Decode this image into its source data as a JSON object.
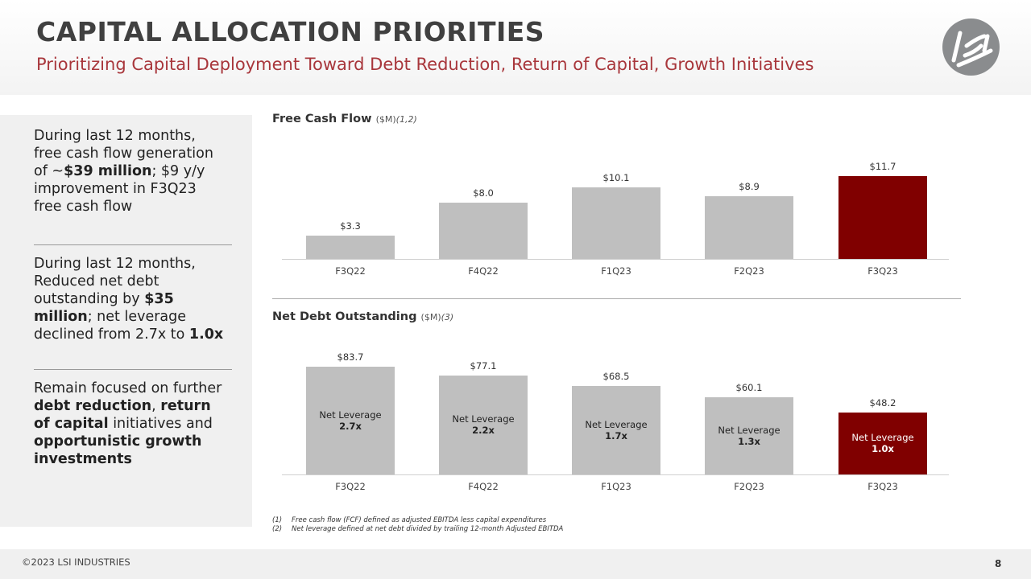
{
  "header": {
    "title": "CAPITAL ALLOCATION PRIORITIES",
    "subtitle": "Prioritizing Capital Deployment Toward Debt Reduction, Return of Capital, Growth Initiatives",
    "logo_text": "LSI"
  },
  "sidebar": {
    "blocks": [
      [
        {
          "t": "During last 12 months, free cash flow generation of ~",
          "b": false
        },
        {
          "t": "$39 million",
          "b": true
        },
        {
          "t": "; $9 y/y improvement in F3Q23 free cash flow",
          "b": false
        }
      ],
      [
        {
          "t": "During last 12 months, Reduced net debt outstanding by ",
          "b": false
        },
        {
          "t": "$35 million",
          "b": true
        },
        {
          "t": "; net leverage declined from 2.7x to ",
          "b": false
        },
        {
          "t": "1.0x",
          "b": true
        }
      ],
      [
        {
          "t": "Remain focused on further ",
          "b": false
        },
        {
          "t": "debt reduction",
          "b": true
        },
        {
          "t": ", ",
          "b": false
        },
        {
          "t": "return of capital",
          "b": true
        },
        {
          "t": " initiatives and ",
          "b": false
        },
        {
          "t": "opportunistic growth investments",
          "b": true
        }
      ]
    ]
  },
  "chart_data": [
    {
      "type": "bar",
      "title": "Free Cash Flow",
      "unit": "($M)",
      "footnote_ref": "(1,2)",
      "categories": [
        "F3Q22",
        "F4Q22",
        "F1Q23",
        "F2Q23",
        "F3Q23"
      ],
      "values": [
        3.3,
        8.0,
        10.1,
        8.9,
        11.7
      ],
      "labels": [
        "$3.3",
        "$8.0",
        "$10.1",
        "$8.9",
        "$11.7"
      ],
      "colors": [
        "#bfbfbf",
        "#bfbfbf",
        "#bfbfbf",
        "#bfbfbf",
        "#800000"
      ],
      "grid": false
    },
    {
      "type": "bar",
      "title": "Net Debt Outstanding",
      "unit": "($M)",
      "footnote_ref": "(3)",
      "categories": [
        "F3Q22",
        "F4Q22",
        "F1Q23",
        "F2Q23",
        "F3Q23"
      ],
      "values": [
        83.7,
        77.1,
        68.5,
        60.1,
        48.2
      ],
      "labels": [
        "$83.7",
        "$77.1",
        "$68.5",
        "$60.1",
        "$48.2"
      ],
      "colors": [
        "#bfbfbf",
        "#bfbfbf",
        "#bfbfbf",
        "#bfbfbf",
        "#800000"
      ],
      "inner_label": "Net Leverage",
      "leverage": [
        "2.7x",
        "2.2x",
        "1.7x",
        "1.3x",
        "1.0x"
      ],
      "grid": false
    }
  ],
  "notes": [
    {
      "n": "(1)",
      "t": "Free cash flow (FCF) defined  as adjusted  EBITDA  less capital  expenditures"
    },
    {
      "n": "(2)",
      "t": "Net leverage  defined  at net debt divided  by trailing  12-month Adjusted  EBITDA"
    }
  ],
  "footer": {
    "copyright": "©2023 LSI INDUSTRIES",
    "page": "8"
  }
}
